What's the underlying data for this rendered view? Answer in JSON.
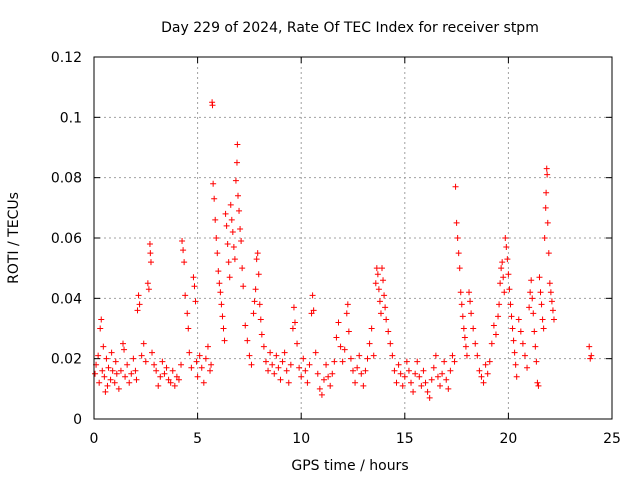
{
  "chart_data": {
    "type": "scatter",
    "title": "Day 229 of 2024, Rate Of TEC Index for receiver stpm",
    "xlabel": "GPS time / hours",
    "ylabel": "ROTI / TECUs",
    "xlim": [
      0,
      25
    ],
    "ylim": [
      0,
      0.12
    ],
    "xticks": [
      0,
      5,
      10,
      15,
      20,
      25
    ],
    "xtick_labels": [
      "0",
      "5",
      "10",
      "15",
      "20",
      "25"
    ],
    "yticks": [
      0,
      0.02,
      0.04,
      0.06,
      0.08,
      0.1,
      0.12
    ],
    "ytick_labels": [
      "0",
      "0.02",
      "0.04",
      "0.06",
      "0.08",
      "0.1",
      "0.12"
    ],
    "grid": true,
    "marker": "+",
    "colors": {
      "series": "#ff0000",
      "grid": "#a0a0a0",
      "axis": "#000000"
    },
    "series": [
      {
        "points": [
          [
            0.05,
            0.015
          ],
          [
            0.1,
            0.018
          ],
          [
            0.2,
            0.021
          ],
          [
            0.25,
            0.012
          ],
          [
            0.3,
            0.03
          ],
          [
            0.35,
            0.033
          ],
          [
            0.4,
            0.016
          ],
          [
            0.45,
            0.024
          ],
          [
            0.5,
            0.014
          ],
          [
            0.55,
            0.009
          ],
          [
            0.6,
            0.02
          ],
          [
            0.65,
            0.011
          ],
          [
            0.7,
            0.017
          ],
          [
            0.8,
            0.013
          ],
          [
            0.85,
            0.022
          ],
          [
            0.9,
            0.016
          ],
          [
            1.0,
            0.012
          ],
          [
            1.05,
            0.019
          ],
          [
            1.1,
            0.015
          ],
          [
            1.2,
            0.01
          ],
          [
            1.3,
            0.016
          ],
          [
            1.4,
            0.025
          ],
          [
            1.45,
            0.023
          ],
          [
            1.5,
            0.014
          ],
          [
            1.6,
            0.018
          ],
          [
            1.7,
            0.012
          ],
          [
            1.8,
            0.015
          ],
          [
            1.9,
            0.02
          ],
          [
            2.0,
            0.016
          ],
          [
            2.05,
            0.013
          ],
          [
            2.1,
            0.036
          ],
          [
            2.15,
            0.041
          ],
          [
            2.2,
            0.038
          ],
          [
            2.3,
            0.021
          ],
          [
            2.4,
            0.025
          ],
          [
            2.5,
            0.019
          ],
          [
            2.6,
            0.045
          ],
          [
            2.65,
            0.043
          ],
          [
            2.7,
            0.058
          ],
          [
            2.72,
            0.055
          ],
          [
            2.75,
            0.052
          ],
          [
            2.8,
            0.022
          ],
          [
            2.9,
            0.018
          ],
          [
            3.0,
            0.016
          ],
          [
            3.1,
            0.011
          ],
          [
            3.2,
            0.014
          ],
          [
            3.3,
            0.019
          ],
          [
            3.4,
            0.015
          ],
          [
            3.5,
            0.017
          ],
          [
            3.6,
            0.013
          ],
          [
            3.7,
            0.012
          ],
          [
            3.8,
            0.016
          ],
          [
            3.9,
            0.011
          ],
          [
            4.0,
            0.014
          ],
          [
            4.1,
            0.013
          ],
          [
            4.2,
            0.018
          ],
          [
            4.25,
            0.059
          ],
          [
            4.3,
            0.056
          ],
          [
            4.35,
            0.052
          ],
          [
            4.4,
            0.041
          ],
          [
            4.5,
            0.035
          ],
          [
            4.55,
            0.03
          ],
          [
            4.6,
            0.022
          ],
          [
            4.7,
            0.017
          ],
          [
            4.8,
            0.047
          ],
          [
            4.85,
            0.044
          ],
          [
            4.9,
            0.039
          ],
          [
            4.95,
            0.019
          ],
          [
            5.0,
            0.014
          ],
          [
            5.1,
            0.021
          ],
          [
            5.2,
            0.017
          ],
          [
            5.3,
            0.012
          ],
          [
            5.4,
            0.02
          ],
          [
            5.5,
            0.024
          ],
          [
            5.6,
            0.016
          ],
          [
            5.65,
            0.018
          ],
          [
            5.7,
            0.105
          ],
          [
            5.72,
            0.104
          ],
          [
            5.75,
            0.078
          ],
          [
            5.8,
            0.073
          ],
          [
            5.85,
            0.066
          ],
          [
            5.9,
            0.06
          ],
          [
            5.95,
            0.055
          ],
          [
            6.0,
            0.049
          ],
          [
            6.05,
            0.045
          ],
          [
            6.1,
            0.042
          ],
          [
            6.15,
            0.038
          ],
          [
            6.2,
            0.034
          ],
          [
            6.25,
            0.03
          ],
          [
            6.3,
            0.026
          ],
          [
            6.35,
            0.068
          ],
          [
            6.4,
            0.064
          ],
          [
            6.45,
            0.058
          ],
          [
            6.5,
            0.052
          ],
          [
            6.55,
            0.047
          ],
          [
            6.6,
            0.071
          ],
          [
            6.65,
            0.066
          ],
          [
            6.7,
            0.062
          ],
          [
            6.75,
            0.057
          ],
          [
            6.8,
            0.053
          ],
          [
            6.85,
            0.079
          ],
          [
            6.9,
            0.085
          ],
          [
            6.92,
            0.091
          ],
          [
            6.95,
            0.074
          ],
          [
            7.0,
            0.069
          ],
          [
            7.05,
            0.063
          ],
          [
            7.1,
            0.059
          ],
          [
            7.15,
            0.05
          ],
          [
            7.2,
            0.044
          ],
          [
            7.3,
            0.031
          ],
          [
            7.4,
            0.026
          ],
          [
            7.5,
            0.021
          ],
          [
            7.6,
            0.018
          ],
          [
            7.7,
            0.035
          ],
          [
            7.75,
            0.039
          ],
          [
            7.8,
            0.043
          ],
          [
            7.85,
            0.053
          ],
          [
            7.9,
            0.055
          ],
          [
            7.95,
            0.048
          ],
          [
            8.0,
            0.038
          ],
          [
            8.05,
            0.033
          ],
          [
            8.1,
            0.028
          ],
          [
            8.2,
            0.024
          ],
          [
            8.3,
            0.019
          ],
          [
            8.4,
            0.016
          ],
          [
            8.5,
            0.022
          ],
          [
            8.6,
            0.018
          ],
          [
            8.7,
            0.015
          ],
          [
            8.8,
            0.021
          ],
          [
            8.9,
            0.017
          ],
          [
            9.0,
            0.013
          ],
          [
            9.1,
            0.019
          ],
          [
            9.2,
            0.022
          ],
          [
            9.3,
            0.016
          ],
          [
            9.4,
            0.012
          ],
          [
            9.5,
            0.018
          ],
          [
            9.6,
            0.03
          ],
          [
            9.65,
            0.037
          ],
          [
            9.7,
            0.032
          ],
          [
            9.8,
            0.025
          ],
          [
            9.9,
            0.017
          ],
          [
            10.0,
            0.014
          ],
          [
            10.1,
            0.02
          ],
          [
            10.2,
            0.016
          ],
          [
            10.3,
            0.012
          ],
          [
            10.4,
            0.018
          ],
          [
            10.5,
            0.035
          ],
          [
            10.55,
            0.041
          ],
          [
            10.6,
            0.036
          ],
          [
            10.7,
            0.022
          ],
          [
            10.8,
            0.015
          ],
          [
            10.9,
            0.01
          ],
          [
            11.0,
            0.008
          ],
          [
            11.1,
            0.013
          ],
          [
            11.2,
            0.018
          ],
          [
            11.3,
            0.014
          ],
          [
            11.4,
            0.011
          ],
          [
            11.5,
            0.015
          ],
          [
            11.6,
            0.019
          ],
          [
            11.7,
            0.027
          ],
          [
            11.8,
            0.032
          ],
          [
            11.9,
            0.024
          ],
          [
            12.0,
            0.019
          ],
          [
            12.1,
            0.023
          ],
          [
            12.2,
            0.035
          ],
          [
            12.25,
            0.038
          ],
          [
            12.3,
            0.029
          ],
          [
            12.4,
            0.02
          ],
          [
            12.5,
            0.016
          ],
          [
            12.6,
            0.012
          ],
          [
            12.7,
            0.017
          ],
          [
            12.8,
            0.021
          ],
          [
            12.9,
            0.015
          ],
          [
            13.0,
            0.011
          ],
          [
            13.1,
            0.016
          ],
          [
            13.2,
            0.02
          ],
          [
            13.3,
            0.025
          ],
          [
            13.4,
            0.03
          ],
          [
            13.5,
            0.021
          ],
          [
            13.6,
            0.045
          ],
          [
            13.65,
            0.05
          ],
          [
            13.7,
            0.048
          ],
          [
            13.75,
            0.043
          ],
          [
            13.8,
            0.039
          ],
          [
            13.85,
            0.035
          ],
          [
            13.9,
            0.05
          ],
          [
            13.95,
            0.046
          ],
          [
            14.0,
            0.041
          ],
          [
            14.05,
            0.037
          ],
          [
            14.1,
            0.033
          ],
          [
            14.2,
            0.029
          ],
          [
            14.3,
            0.025
          ],
          [
            14.4,
            0.021
          ],
          [
            14.5,
            0.016
          ],
          [
            14.6,
            0.012
          ],
          [
            14.7,
            0.018
          ],
          [
            14.8,
            0.015
          ],
          [
            14.9,
            0.011
          ],
          [
            15.0,
            0.014
          ],
          [
            15.1,
            0.019
          ],
          [
            15.2,
            0.016
          ],
          [
            15.3,
            0.012
          ],
          [
            15.4,
            0.009
          ],
          [
            15.5,
            0.015
          ],
          [
            15.6,
            0.019
          ],
          [
            15.7,
            0.014
          ],
          [
            15.8,
            0.011
          ],
          [
            15.9,
            0.016
          ],
          [
            16.0,
            0.012
          ],
          [
            16.1,
            0.009
          ],
          [
            16.2,
            0.007
          ],
          [
            16.3,
            0.013
          ],
          [
            16.4,
            0.017
          ],
          [
            16.5,
            0.021
          ],
          [
            16.6,
            0.014
          ],
          [
            16.7,
            0.011
          ],
          [
            16.8,
            0.015
          ],
          [
            16.9,
            0.019
          ],
          [
            17.0,
            0.013
          ],
          [
            17.1,
            0.01
          ],
          [
            17.2,
            0.016
          ],
          [
            17.3,
            0.021
          ],
          [
            17.4,
            0.019
          ],
          [
            17.45,
            0.077
          ],
          [
            17.5,
            0.065
          ],
          [
            17.55,
            0.06
          ],
          [
            17.6,
            0.055
          ],
          [
            17.65,
            0.05
          ],
          [
            17.7,
            0.042
          ],
          [
            17.75,
            0.038
          ],
          [
            17.8,
            0.034
          ],
          [
            17.85,
            0.03
          ],
          [
            17.9,
            0.027
          ],
          [
            17.95,
            0.024
          ],
          [
            18.0,
            0.021
          ],
          [
            18.1,
            0.042
          ],
          [
            18.15,
            0.039
          ],
          [
            18.2,
            0.035
          ],
          [
            18.3,
            0.03
          ],
          [
            18.4,
            0.025
          ],
          [
            18.5,
            0.021
          ],
          [
            18.6,
            0.016
          ],
          [
            18.7,
            0.014
          ],
          [
            18.8,
            0.012
          ],
          [
            18.9,
            0.018
          ],
          [
            19.0,
            0.015
          ],
          [
            19.1,
            0.019
          ],
          [
            19.2,
            0.025
          ],
          [
            19.3,
            0.031
          ],
          [
            19.4,
            0.028
          ],
          [
            19.5,
            0.034
          ],
          [
            19.55,
            0.038
          ],
          [
            19.6,
            0.045
          ],
          [
            19.65,
            0.05
          ],
          [
            19.7,
            0.052
          ],
          [
            19.75,
            0.047
          ],
          [
            19.8,
            0.042
          ],
          [
            19.85,
            0.06
          ],
          [
            19.9,
            0.057
          ],
          [
            19.95,
            0.053
          ],
          [
            20.0,
            0.048
          ],
          [
            20.05,
            0.043
          ],
          [
            20.1,
            0.038
          ],
          [
            20.15,
            0.034
          ],
          [
            20.2,
            0.03
          ],
          [
            20.25,
            0.026
          ],
          [
            20.3,
            0.022
          ],
          [
            20.35,
            0.018
          ],
          [
            20.4,
            0.014
          ],
          [
            20.5,
            0.033
          ],
          [
            20.6,
            0.029
          ],
          [
            20.7,
            0.025
          ],
          [
            20.8,
            0.021
          ],
          [
            20.9,
            0.017
          ],
          [
            21.0,
            0.037
          ],
          [
            21.05,
            0.042
          ],
          [
            21.1,
            0.046
          ],
          [
            21.15,
            0.04
          ],
          [
            21.2,
            0.035
          ],
          [
            21.25,
            0.029
          ],
          [
            21.3,
            0.024
          ],
          [
            21.35,
            0.019
          ],
          [
            21.4,
            0.012
          ],
          [
            21.45,
            0.011
          ],
          [
            21.5,
            0.047
          ],
          [
            21.55,
            0.042
          ],
          [
            21.6,
            0.038
          ],
          [
            21.65,
            0.033
          ],
          [
            21.7,
            0.03
          ],
          [
            21.75,
            0.06
          ],
          [
            21.8,
            0.07
          ],
          [
            21.82,
            0.075
          ],
          [
            21.85,
            0.083
          ],
          [
            21.87,
            0.081
          ],
          [
            21.9,
            0.065
          ],
          [
            21.95,
            0.055
          ],
          [
            22.0,
            0.045
          ],
          [
            22.05,
            0.042
          ],
          [
            22.1,
            0.039
          ],
          [
            22.15,
            0.036
          ],
          [
            22.2,
            0.033
          ],
          [
            23.9,
            0.024
          ],
          [
            23.95,
            0.02
          ],
          [
            24.0,
            0.021
          ]
        ]
      }
    ]
  }
}
